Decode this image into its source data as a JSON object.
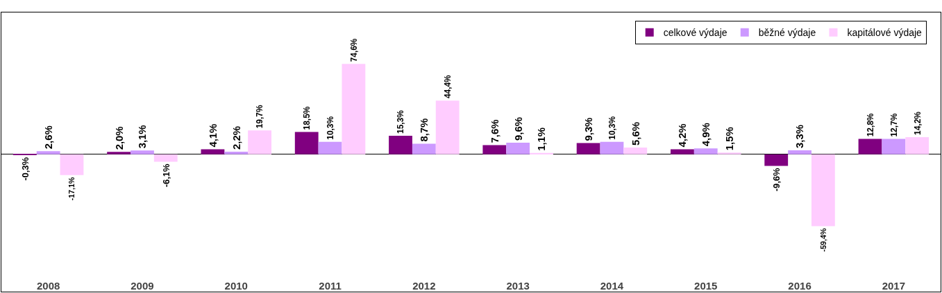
{
  "chart_data": {
    "type": "bar",
    "categories": [
      "2008",
      "2009",
      "2010",
      "2011",
      "2012",
      "2013",
      "2014",
      "2015",
      "2016",
      "2017"
    ],
    "series": [
      {
        "name": "celkové výdaje",
        "color": "#800080",
        "values": [
          -0.3,
          2.0,
          4.1,
          18.5,
          15.3,
          7.6,
          9.3,
          4.2,
          -9.6,
          12.8
        ],
        "value_labels": [
          "-0,3%",
          "2,0%",
          "4,1%",
          "18,5%",
          "15,3%",
          "7,6%",
          "9,3%",
          "4,2%",
          "-9,6%",
          "12,8%"
        ]
      },
      {
        "name": "běžné výdaje",
        "color": "#cc99ff",
        "values": [
          2.6,
          3.1,
          2.2,
          10.3,
          8.7,
          9.6,
          10.3,
          4.9,
          3.3,
          12.7
        ],
        "value_labels": [
          "2,6%",
          "3,1%",
          "2,2%",
          "10,3%",
          "8,7%",
          "9,6%",
          "10,3%",
          "4,9%",
          "3,3%",
          "12,7%"
        ]
      },
      {
        "name": "kapitálové výdaje",
        "color": "#ffccff",
        "values": [
          -17.1,
          -6.1,
          19.7,
          74.6,
          44.4,
          1.1,
          5.6,
          1.5,
          -59.4,
          14.2
        ],
        "value_labels": [
          "-17,1%",
          "-6,1%",
          "19,7%",
          "74,6%",
          "44,4%",
          "1,1%",
          "5,6%",
          "1,5%",
          "-59,4%",
          "14,2%"
        ]
      }
    ],
    "legend": "top right",
    "grid": false,
    "tick_labels": "x"
  }
}
